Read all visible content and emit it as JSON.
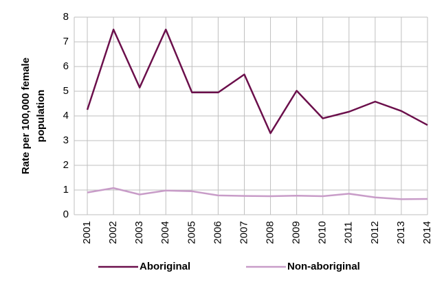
{
  "chart_data": {
    "type": "line",
    "y_label": [
      "Rate per 100,000 female",
      "population"
    ],
    "categories": [
      "2001",
      "2002",
      "2003",
      "2004",
      "2005",
      "2006",
      "2007",
      "2008",
      "2009",
      "2010",
      "2011",
      "2012",
      "2013",
      "2014"
    ],
    "series": [
      {
        "name": "Aboriginal",
        "color": "#6b0f4b",
        "values": [
          4.25,
          7.5,
          5.15,
          7.5,
          4.95,
          4.95,
          5.68,
          3.3,
          5.02,
          3.9,
          4.17,
          4.58,
          4.2,
          3.63
        ]
      },
      {
        "name": "Non-aboriginal",
        "color": "#c89cc8",
        "values": [
          0.9,
          1.08,
          0.82,
          0.98,
          0.95,
          0.78,
          0.76,
          0.75,
          0.77,
          0.75,
          0.85,
          0.7,
          0.63,
          0.64
        ]
      }
    ],
    "ylim": [
      0,
      8
    ],
    "yticks": [
      0,
      1,
      2,
      3,
      4,
      5,
      6,
      7,
      8
    ],
    "grid": true,
    "legend": "bottom"
  }
}
